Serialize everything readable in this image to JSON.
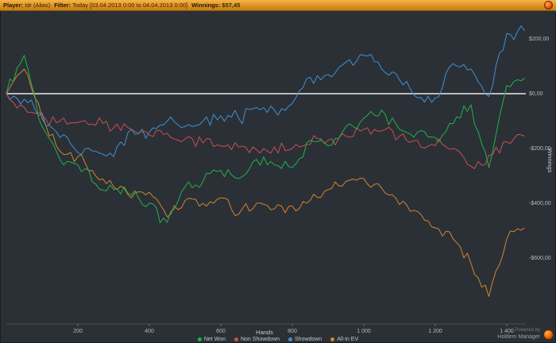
{
  "topbar": {
    "player_label": "Player:",
    "player_value": "Idr (Alias)",
    "filter_label": "Filter:",
    "filter_value": "Today [03.04.2013 0:00 to 04.04.2013 0:00]",
    "winnings_label": "Winnings:",
    "winnings_value": "$57,45"
  },
  "chart_data": {
    "type": "line",
    "title": "",
    "xlabel": "Hands",
    "ylabel": "Winnings",
    "xlim": [
      0,
      1470
    ],
    "ylim": [
      -780,
      280
    ],
    "grid": false,
    "legend_position": "bottom",
    "zero_line_color": "#e9e9e9",
    "x": [
      0,
      50,
      100,
      150,
      200,
      250,
      300,
      350,
      400,
      450,
      500,
      550,
      600,
      650,
      700,
      750,
      800,
      850,
      900,
      950,
      1000,
      1050,
      1100,
      1150,
      1200,
      1250,
      1300,
      1350,
      1400,
      1450
    ],
    "series": [
      {
        "name": "Net Won",
        "color": "#21b24b",
        "values": [
          0,
          140,
          -120,
          -240,
          -260,
          -330,
          -350,
          -370,
          -400,
          -470,
          -340,
          -320,
          -280,
          -310,
          -240,
          -260,
          -270,
          -170,
          -190,
          -120,
          -90,
          -60,
          -130,
          -140,
          -160,
          -110,
          -40,
          -270,
          30,
          57
        ]
      },
      {
        "name": "Non Showdown",
        "color": "#c85050",
        "values": [
          0,
          -50,
          -80,
          -100,
          -105,
          -115,
          -125,
          -130,
          -150,
          -145,
          -165,
          -180,
          -190,
          -195,
          -205,
          -195,
          -200,
          -185,
          -170,
          -155,
          -130,
          -135,
          -155,
          -170,
          -190,
          -200,
          -265,
          -225,
          -175,
          -155
        ]
      },
      {
        "name": "Showdown",
        "color": "#3f90d4",
        "values": [
          0,
          -20,
          -70,
          -160,
          -215,
          -210,
          -230,
          -130,
          -140,
          -100,
          -120,
          -100,
          -80,
          -90,
          -50,
          -60,
          -35,
          60,
          70,
          115,
          140,
          90,
          50,
          -15,
          -15,
          110,
          90,
          -10,
          220,
          230
        ]
      },
      {
        "name": "All-in EV",
        "color": "#d4842c",
        "values": [
          0,
          90,
          -90,
          -210,
          -230,
          -300,
          -340,
          -380,
          -360,
          -450,
          -390,
          -400,
          -380,
          -440,
          -400,
          -420,
          -410,
          -390,
          -350,
          -320,
          -310,
          -345,
          -405,
          -430,
          -490,
          -530,
          -620,
          -740,
          -530,
          -490
        ]
      }
    ],
    "xticks": [
      200,
      400,
      600,
      800,
      1000,
      1200,
      1400
    ],
    "xtick_labels": [
      "200",
      "400",
      "600",
      "800",
      "1 000",
      "1 200",
      "1 400"
    ],
    "yticks": [
      200,
      0,
      -200,
      -400,
      -600
    ],
    "ytick_labels": [
      "$200,00",
      "$0,00",
      "-$200,00",
      "-$400,00",
      "-$600,00"
    ]
  },
  "footer": {
    "powered_by": "Powered by",
    "brand": "Holdem Manager"
  }
}
